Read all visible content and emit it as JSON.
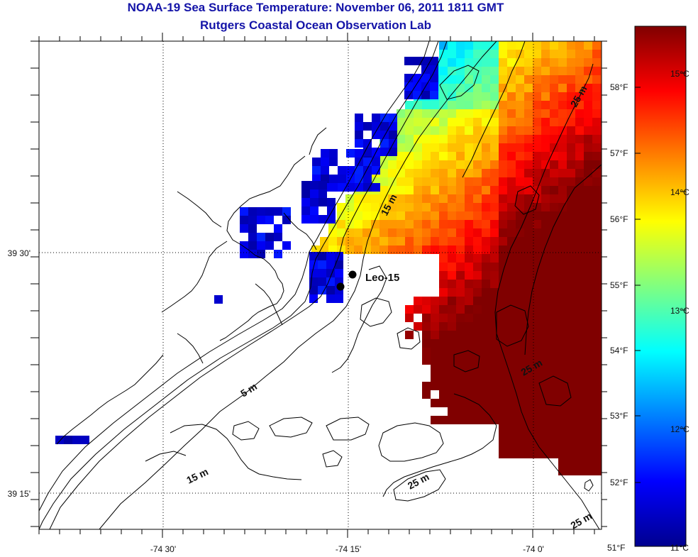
{
  "title": "NOAA-19 Sea Surface Temperature:  November 06, 2011 1811 GMT",
  "subtitle": "Rutgers Coastal Ocean Observation Lab",
  "axes": {
    "x_ticks": [
      "-74 30'",
      "-74 15'",
      "-74 0'"
    ],
    "y_ticks": [
      "39 30'",
      "39 15'"
    ]
  },
  "colorbar": {
    "fahrenheit_labels": [
      "58°F",
      "57°F",
      "56°F",
      "55°F",
      "54°F",
      "53°F",
      "52°F",
      "51°F"
    ],
    "celsius_labels": [
      "15°C",
      "14°C",
      "13°C",
      "12°C",
      "11°C"
    ],
    "colormap": "jet",
    "colors": [
      "#00008f",
      "#0000ff",
      "#0080ff",
      "#00ffff",
      "#80ff80",
      "#ffff00",
      "#ff8000",
      "#ff0000",
      "#800000"
    ]
  },
  "contour_labels": [
    {
      "text": "5 m",
      "value": 5
    },
    {
      "text": "15 m",
      "value": 15
    },
    {
      "text": "15 m",
      "value": 15
    },
    {
      "text": "25 m",
      "value": 25
    },
    {
      "text": "25 m",
      "value": 25
    },
    {
      "text": "25 m",
      "value": 25
    },
    {
      "text": "25 m",
      "value": 25
    }
  ],
  "stations": [
    {
      "name": "Leo-15"
    }
  ],
  "land_color": "#ffffff",
  "outline_color": "#000000"
}
